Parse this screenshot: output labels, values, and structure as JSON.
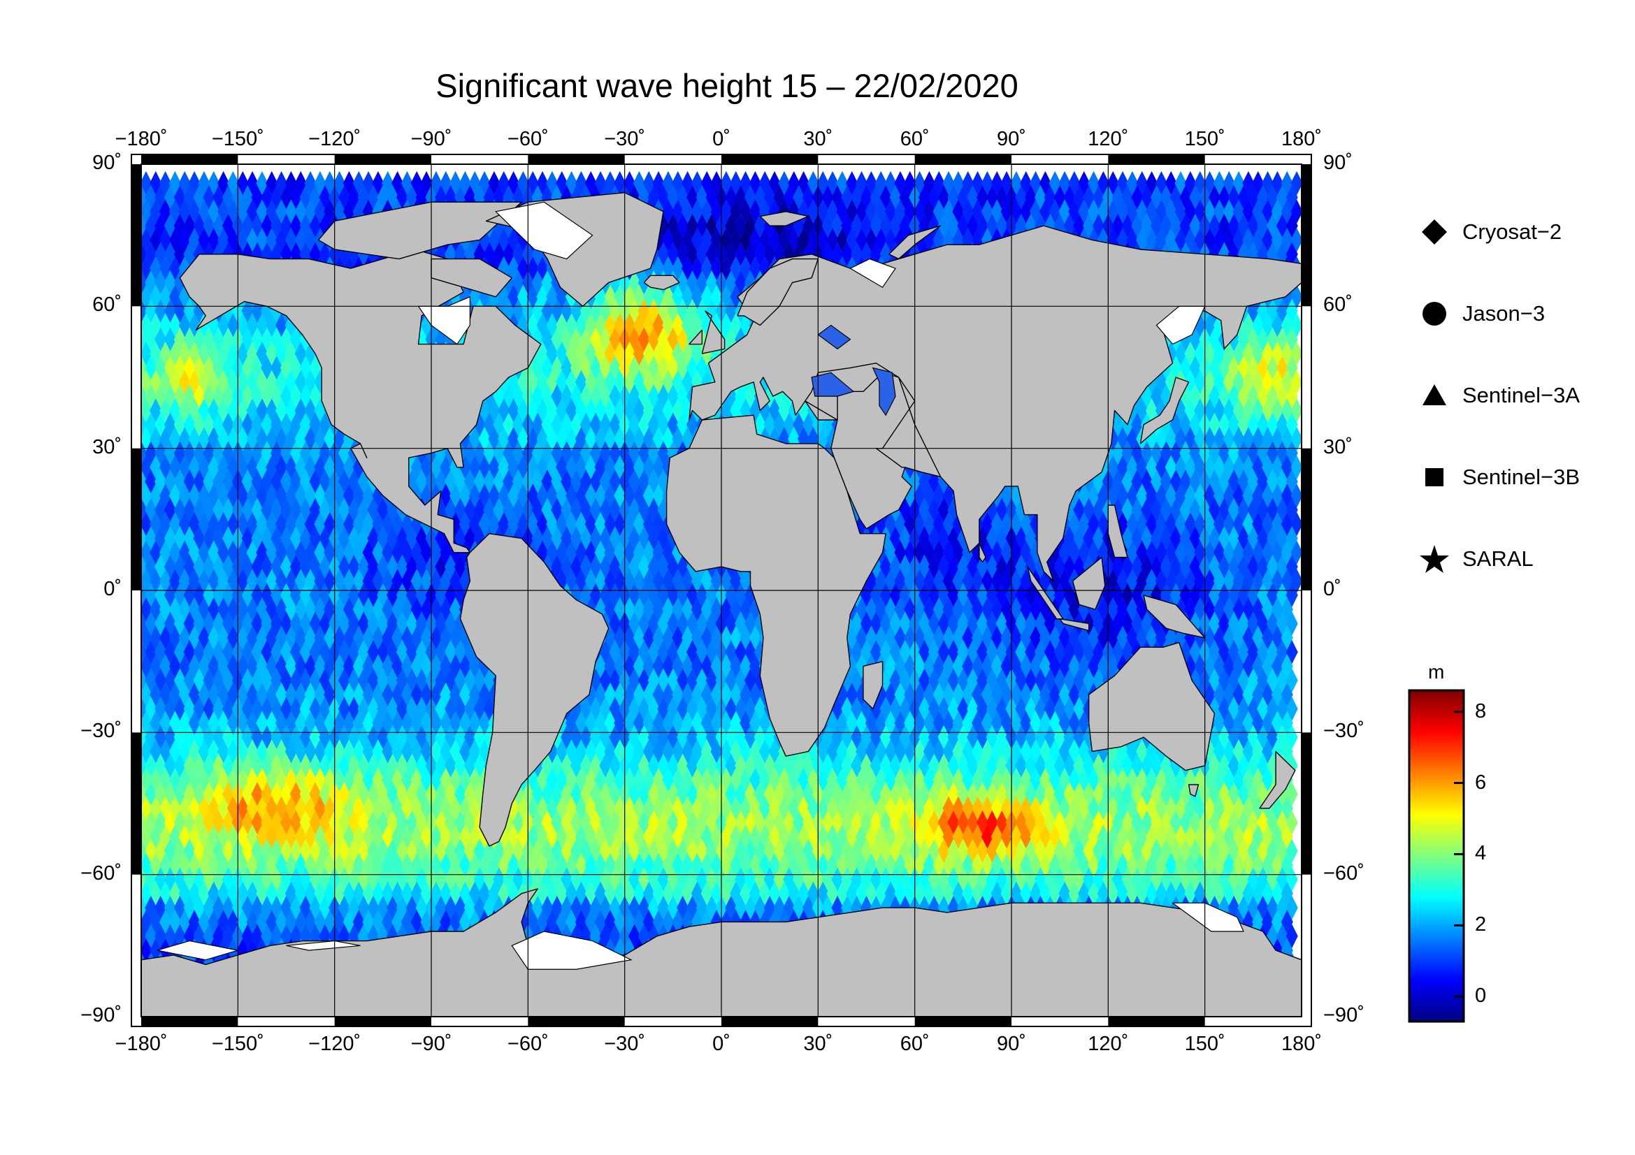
{
  "title": "Significant wave height 15 – 22/02/2020",
  "map": {
    "projection": "equirectangular",
    "lon_range": [
      -180,
      180
    ],
    "lat_range": [
      -90,
      90
    ],
    "lon_ticks": [
      "−180˚",
      "−150˚",
      "−120˚",
      "−90˚",
      "−60˚",
      "−30˚",
      "0˚",
      "30˚",
      "60˚",
      "90˚",
      "120˚",
      "150˚",
      "180˚"
    ],
    "lat_ticks": [
      "90˚",
      "60˚",
      "30˚",
      "0˚",
      "−30˚",
      "−60˚",
      "−90˚"
    ],
    "land_color": "#c0c0c0",
    "ice_color": "#ffffff",
    "grid": true
  },
  "legend": {
    "items": [
      {
        "label": "Cryosat−2",
        "symbol": "diamond-icon"
      },
      {
        "label": "Jason−3",
        "symbol": "circle-icon"
      },
      {
        "label": "Sentinel−3A",
        "symbol": "triangle-icon"
      },
      {
        "label": "Sentinel−3B",
        "symbol": "square-icon"
      },
      {
        "label": "SARAL",
        "symbol": "star-icon"
      }
    ]
  },
  "colorbar": {
    "unit": "m",
    "range": [
      -0.7,
      8.6
    ],
    "tick_values": [
      0,
      2,
      4,
      6,
      8
    ],
    "tick_labels": [
      "0",
      "2",
      "4",
      "6",
      "8"
    ],
    "colormap": [
      "#00007f",
      "#0000ff",
      "#007fff",
      "#00ffff",
      "#7fff7f",
      "#ffff00",
      "#ff7f00",
      "#ff0000",
      "#7f0000"
    ]
  }
}
